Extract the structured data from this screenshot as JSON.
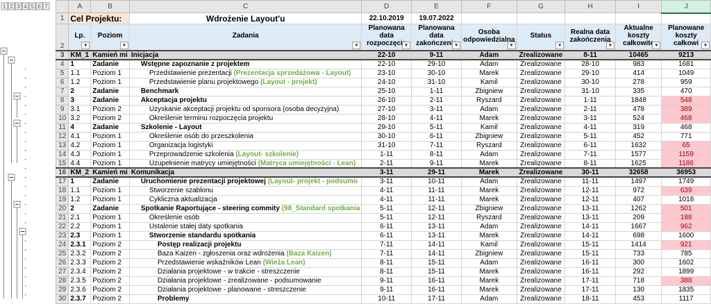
{
  "outline_levels": [
    "1",
    "2",
    "3",
    "4",
    "5",
    "6",
    "7"
  ],
  "columns": [
    "A",
    "B",
    "C",
    "D",
    "E",
    "F",
    "G",
    "H",
    "I",
    "J"
  ],
  "row_numbers": [
    "1",
    "2",
    "3",
    "4",
    "5",
    "6",
    "7",
    "8",
    "9",
    "10",
    "11",
    "12",
    "13",
    "14",
    "15",
    "16",
    "17",
    "18",
    "19",
    "20",
    "21",
    "22",
    "23",
    "24",
    "25",
    "26",
    "27",
    "28",
    "29",
    "30"
  ],
  "header": {
    "label": "Cel Projektu:",
    "project": "Wdrożenie Layout'u",
    "start": "22.10.2019",
    "end": "19.07.2022"
  },
  "table": {
    "headers": [
      "Lp.",
      "Poziom",
      "Zadania",
      "Planowana data rozpoczęcia",
      "Planowana data zakończenia",
      "Osoba odpowiedzialna",
      "Status",
      "Realna data zakończenia",
      "Aktualne koszty całkowite",
      "Planowane koszty całkowi"
    ],
    "rows": [
      {
        "lp": "KM_1",
        "poziom": "Kamień mi",
        "zadanie": "Inicjacja",
        "start": "22-10",
        "end": "9-11",
        "owner": "Adam",
        "status": "Zrealizowane",
        "real_end": "8-11",
        "actual": 10465,
        "planned": 9213
      },
      {
        "lp": "1",
        "poziom": "Zadanie",
        "zadanie": "Wstępne zapoznanie z projektem",
        "start": "22-10",
        "end": "29-10",
        "owner": "Adam",
        "status": "Zrealizowane",
        "real_end": "28-10",
        "actual": 983,
        "planned": 1681
      },
      {
        "lp": "1.1",
        "poziom": "Poziom 1",
        "zadanie": "Przedstawienie prezentacji",
        "note": "(Prezentacja sprzedażowa - Layout)",
        "start": "23-10",
        "end": "30-10",
        "owner": "Marek",
        "status": "Zrealizowane",
        "real_end": "29-10",
        "actual": 414,
        "planned": 1049
      },
      {
        "lp": "1.2",
        "poziom": "Poziom 1",
        "zadanie": "Przedstawienie planu projektowego",
        "note": "(Layout - projekt)",
        "start": "24-10",
        "end": "31-10",
        "owner": "Kamil",
        "status": "Zrealizowane",
        "real_end": "30-10",
        "actual": 278,
        "planned": 959
      },
      {
        "lp": "2",
        "poziom": "Zadanie",
        "zadanie": "Benchmark",
        "start": "25-10",
        "end": "1-11",
        "owner": "Zbigniew",
        "status": "Zrealizowane",
        "real_end": "31-10",
        "actual": 335,
        "planned": 470
      },
      {
        "lp": "3",
        "poziom": "Zadanie",
        "zadanie": "Akceptacja projektu",
        "start": "26-10",
        "end": "2-11",
        "owner": "Ryszard",
        "status": "Zrealizowane",
        "real_end": "1-11",
        "actual": 1848,
        "planned": 548
      },
      {
        "lp": "3.1",
        "poziom": "Poziom 2",
        "zadanie": "Uzyskanie akceptacji projektu od sponsora (osoba decyzyjna)",
        "start": "27-10",
        "end": "3-11",
        "owner": "Adam",
        "status": "Zrealizowane",
        "real_end": "2-11",
        "actual": 478,
        "planned": 389
      },
      {
        "lp": "3.2",
        "poziom": "Poziom 2",
        "zadanie": "Określenie terminu rozpoczęcia projektu",
        "start": "28-10",
        "end": "4-11",
        "owner": "Marek",
        "status": "Zrealizowane",
        "real_end": "3-11",
        "actual": 524,
        "planned": 468
      },
      {
        "lp": "4",
        "poziom": "Zadanie",
        "zadanie": "Szkolenie - Layout",
        "start": "29-10",
        "end": "5-11",
        "owner": "Kamil",
        "status": "Zrealizowane",
        "real_end": "4-11",
        "actual": 319,
        "planned": 468
      },
      {
        "lp": "4.1",
        "poziom": "Poziom 1",
        "zadanie": "Określenie osób do przeszkolenia",
        "start": "30-10",
        "end": "6-11",
        "owner": "Zbigniew",
        "status": "Zrealizowane",
        "real_end": "5-11",
        "actual": 452,
        "planned": 771
      },
      {
        "lp": "4.2",
        "poziom": "Poziom 1",
        "zadanie": "Organizacja logistyki",
        "start": "31-10",
        "end": "7-11",
        "owner": "Ryszard",
        "status": "Zrealizowane",
        "real_end": "6-11",
        "actual": 1632,
        "planned": 65
      },
      {
        "lp": "4.3",
        "poziom": "Poziom 1",
        "zadanie": "Przeprowadzenie szkolenia",
        "note": "(Layout- szkolenie)",
        "start": "1-11",
        "end": "8-11",
        "owner": "Adam",
        "status": "Zrealizowane",
        "real_end": "7-11",
        "actual": 1577,
        "planned": 1159
      },
      {
        "lp": "4.4",
        "poziom": "Poziom 1",
        "zadanie": "Uzupełnienie matrycy umiejętności",
        "note": "(Matryca umiejętności - Lean)",
        "start": "2-11",
        "end": "9-11",
        "owner": "Marek",
        "status": "Zrealizowane",
        "real_end": "8-11",
        "actual": 1625,
        "planned": 1186
      },
      {
        "lp": "KM_2",
        "poziom": "Kamień mi",
        "zadanie": "Komunikacja",
        "start": "3-11",
        "end": "29-11",
        "owner": "Marek",
        "status": "Zrealizowane",
        "real_end": "30-11",
        "actual": 32658,
        "planned": 36953
      },
      {
        "lp": "1",
        "poziom": "Zadanie",
        "zadanie": "Uruchomienie prezentacji projektowej",
        "note": "(Layout- projekt - podsumo",
        "start": "3-11",
        "end": "10-11",
        "owner": "Adam",
        "status": "Zrealizowane",
        "real_end": "11-11",
        "actual": 1497,
        "planned": 1749
      },
      {
        "lp": "1.1",
        "poziom": "Poziom 1",
        "zadanie": "Stworzenie szablonu",
        "start": "4-11",
        "end": "11-11",
        "owner": "Marek",
        "status": "Zrealizowane",
        "real_end": "12-11",
        "actual": 972,
        "planned": 639
      },
      {
        "lp": "1.2",
        "poziom": "Poziom 1",
        "zadanie": "Cykliczna aktualizacja",
        "start": "4-11",
        "end": "11-11",
        "owner": "Marek",
        "status": "Zrealizowane",
        "real_end": "12-11",
        "actual": 407,
        "planned": 1018
      },
      {
        "lp": "2",
        "poziom": "Zadanie",
        "zadanie": "Spotkanie Raportujące - steering commity",
        "note": "(98_Standard spotkania",
        "start": "5-11",
        "end": "12-11",
        "owner": "Zbigniew",
        "status": "Zrealizowane",
        "real_end": "13-11",
        "actual": 1262,
        "planned": 501
      },
      {
        "lp": "2.1",
        "poziom": "Poziom 1",
        "zadanie": "Określenie osób",
        "start": "5-11",
        "end": "12-11",
        "owner": "Ryszard",
        "status": "Zrealizowane",
        "real_end": "13-11",
        "actual": 209,
        "planned": 188
      },
      {
        "lp": "2.2",
        "poziom": "Poziom 1",
        "zadanie": "Ustalenie stałej daty spotkania",
        "start": "6-11",
        "end": "13-11",
        "owner": "Adam",
        "status": "Zrealizowane",
        "real_end": "14-11",
        "actual": 1667,
        "planned": 962
      },
      {
        "lp": "2.3",
        "poziom": "Poziom 1",
        "zadanie": "Stworzenie standardu spotkania",
        "start": "6-11",
        "end": "13-11",
        "owner": "Marek",
        "status": "Zrealizowane",
        "real_end": "14-11",
        "actual": 698,
        "planned": 1600
      },
      {
        "lp": "2.3.1",
        "poziom": "Poziom 2",
        "zadanie": "Postęp realizacji projektu",
        "start": "7-11",
        "end": "14-11",
        "owner": "Kamil",
        "status": "Zrealizowane",
        "real_end": "15-11",
        "actual": 1414,
        "planned": 921
      },
      {
        "lp": "2.3.2",
        "poziom": "Poziom 2",
        "zadanie": "Baza Kaizen - zgłoszenia oraz wdrożenia",
        "note": "(Baza Kaizen)",
        "start": "7-11",
        "end": "14-11",
        "owner": "Zbigniew",
        "status": "Zrealizowane",
        "real_end": "15-11",
        "actual": 733,
        "planned": 785
      },
      {
        "lp": "2.3.3",
        "poziom": "Poziom 2",
        "zadanie": "Przedstawienie wskaźników Lean",
        "note": "(Wieża Lean)",
        "start": "8-11",
        "end": "15-11",
        "owner": "Adam",
        "status": "Zrealizowane",
        "real_end": "16-11",
        "actual": 300,
        "planned": 1602
      },
      {
        "lp": "2.3.4",
        "poziom": "Poziom 2",
        "zadanie": "Działania projektowe - w trakcie - streszczenie",
        "start": "8-11",
        "end": "15-11",
        "owner": "Marek",
        "status": "Zrealizowane",
        "real_end": "16-11",
        "actual": 292,
        "planned": 1899
      },
      {
        "lp": "2.3.5",
        "poziom": "Poziom 2",
        "zadanie": "Działania projektowe - zrealizowane - podsumowanie",
        "start": "9-11",
        "end": "16-11",
        "owner": "Marek",
        "status": "Zrealizowane",
        "real_end": "17-11",
        "actual": 718,
        "planned": 388
      },
      {
        "lp": "2.3.6",
        "poziom": "Poziom 2",
        "zadanie": "Działania projektowe - planowane - streszczenie",
        "start": "9-11",
        "end": "16-11",
        "owner": "Marek",
        "status": "Zrealizowane",
        "real_end": "17-11",
        "actual": 130,
        "planned": 1835
      },
      {
        "lp": "2.3.7",
        "poziom": "Poziom 2",
        "zadanie": "Problemy",
        "start": "10-11",
        "end": "17-11",
        "owner": "Adam",
        "status": "Zrealizowane",
        "real_end": "18-11",
        "actual": 453,
        "planned": 1117
      }
    ]
  }
}
